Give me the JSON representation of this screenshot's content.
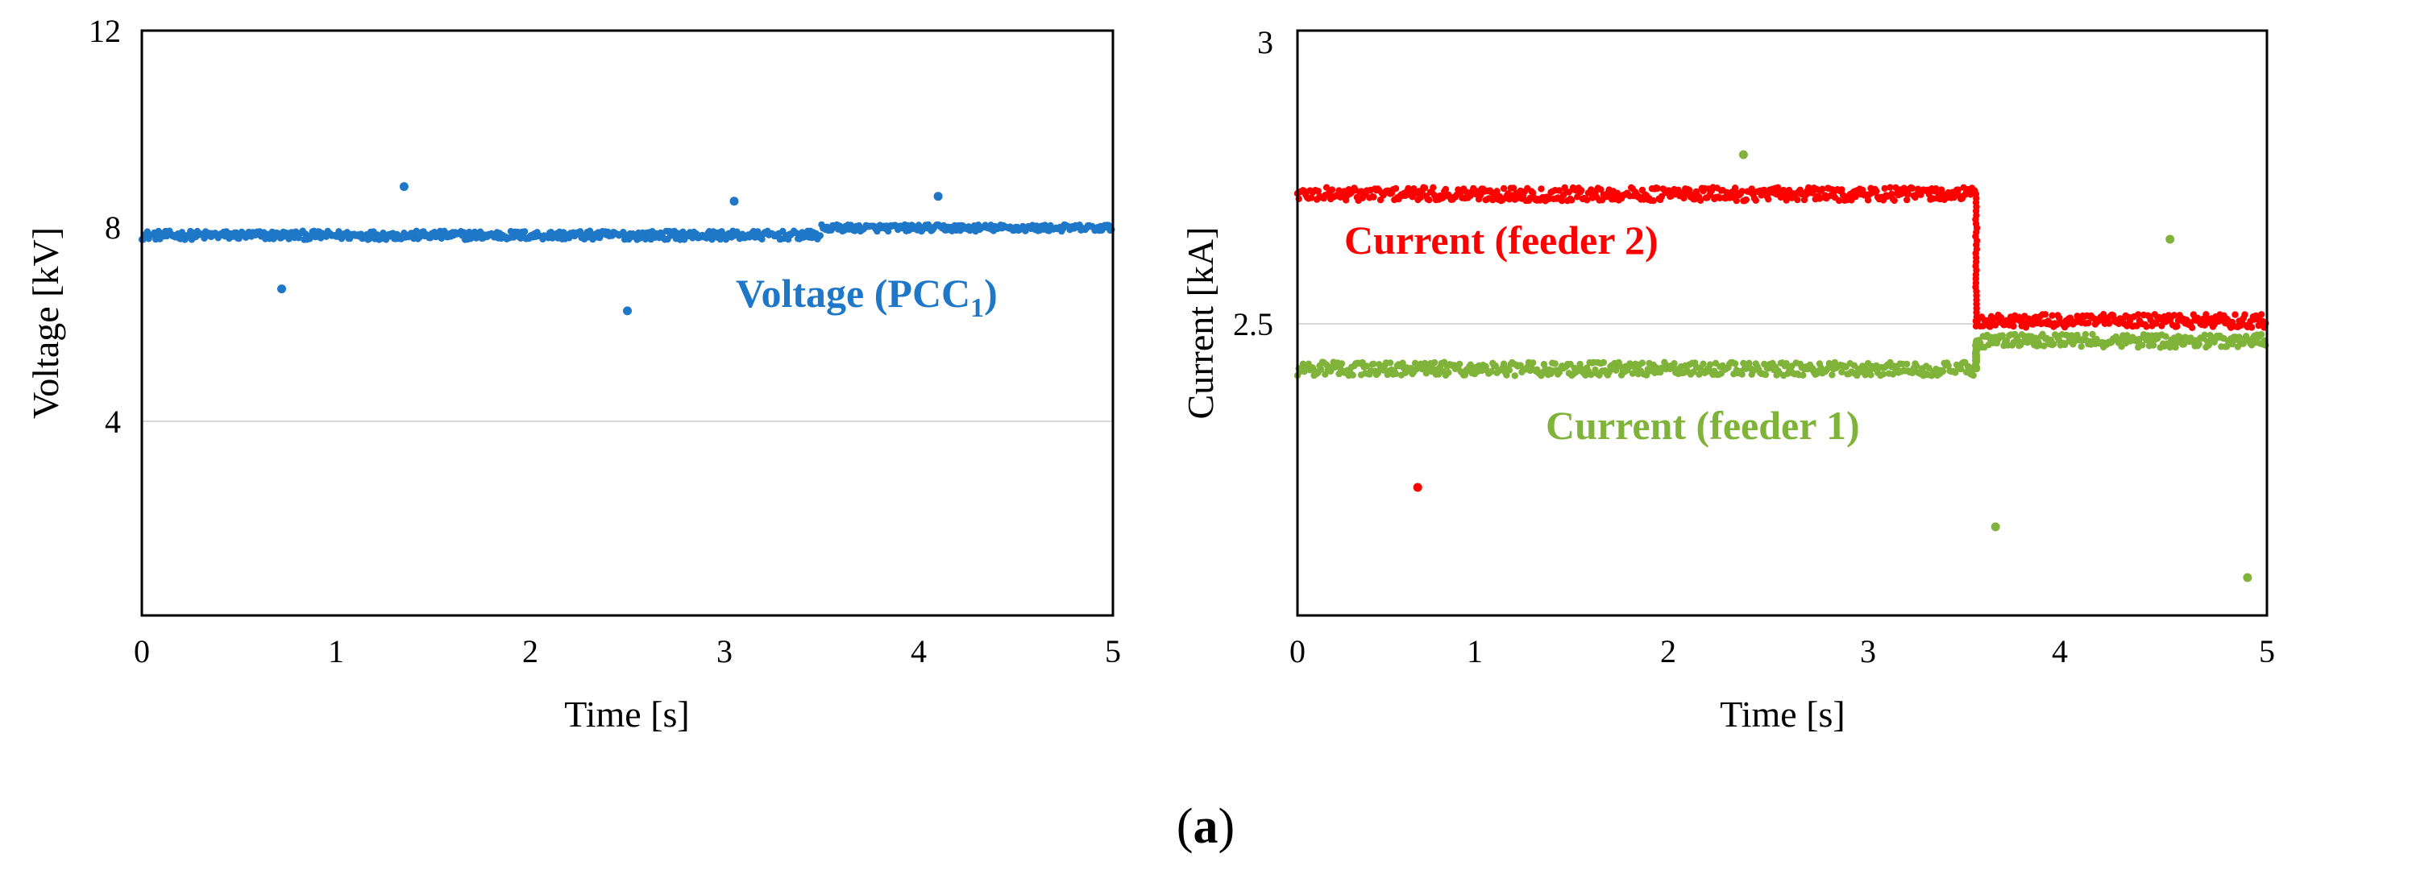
{
  "figure_label": {
    "open": "(",
    "letter": "a",
    "close": ")"
  },
  "chart_data": [
    {
      "type": "scatter",
      "title": "",
      "xlabel": "Time [s]",
      "ylabel": "Voltage [kV]",
      "xlim": [
        0,
        5
      ],
      "ylim": [
        0,
        12
      ],
      "xticks": [
        0,
        1,
        2,
        3,
        4,
        5
      ],
      "yticks": [
        4,
        8,
        12
      ],
      "gridlines_y": [
        4
      ],
      "series": [
        {
          "name": "Voltage (PCC1)",
          "label_main": "Voltage (PCC",
          "label_sub": "1",
          "label_close": ")",
          "color": "#1f77c8",
          "segments": [
            {
              "x_start": 0.0,
              "x_end": 3.5,
              "level": 7.8,
              "noise": 0.09
            },
            {
              "x_start": 3.5,
              "x_end": 5.0,
              "level": 7.95,
              "noise": 0.07
            }
          ],
          "outliers": [
            {
              "x": 0.72,
              "y": 6.7
            },
            {
              "x": 1.35,
              "y": 8.8
            },
            {
              "x": 2.5,
              "y": 6.25
            },
            {
              "x": 3.05,
              "y": 8.5
            },
            {
              "x": 4.1,
              "y": 8.6
            }
          ]
        }
      ]
    },
    {
      "type": "scatter",
      "title": "",
      "xlabel": "Time [s]",
      "ylabel": "Current [kA]",
      "xlim": [
        0,
        5
      ],
      "ylim": [
        2.0,
        3.0
      ],
      "xticks": [
        0,
        1,
        2,
        3,
        4,
        5
      ],
      "yticks": [
        2.5,
        3
      ],
      "gridlines_y": [
        2.5
      ],
      "series": [
        {
          "name": "Current (feeder 2)",
          "color": "#ff0000",
          "segments": [
            {
              "x_start": 0.0,
              "x_end": 3.5,
              "level": 2.73,
              "noise": 0.012
            },
            {
              "x_start": 3.5,
              "x_end": 5.0,
              "level": 2.505,
              "noise": 0.012
            }
          ],
          "transition": {
            "x": 3.5,
            "from": 2.73,
            "to": 2.505
          },
          "outliers": [
            {
              "x": 0.62,
              "y": 2.21
            }
          ]
        },
        {
          "name": "Current (feeder 1)",
          "color": "#7fb339",
          "segments": [
            {
              "x_start": 0.0,
              "x_end": 3.5,
              "level": 2.42,
              "noise": 0.012
            },
            {
              "x_start": 3.5,
              "x_end": 5.0,
              "level": 2.47,
              "noise": 0.012
            }
          ],
          "transition": {
            "x": 3.5,
            "from": 2.42,
            "to": 2.47
          },
          "outliers": [
            {
              "x": 2.3,
              "y": 2.8
            },
            {
              "x": 4.5,
              "y": 2.65
            },
            {
              "x": 3.6,
              "y": 2.14
            },
            {
              "x": 4.9,
              "y": 2.05
            }
          ]
        }
      ]
    }
  ]
}
